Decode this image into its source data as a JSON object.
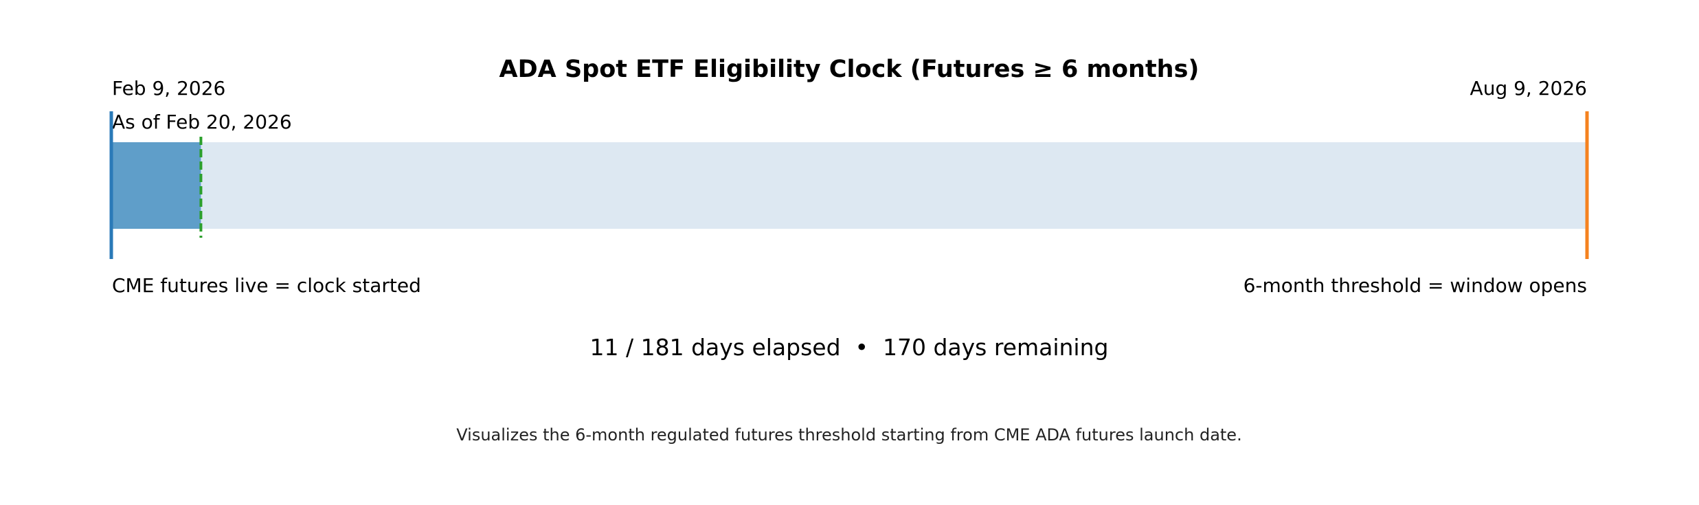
{
  "chart_data": {
    "type": "bar",
    "title": "ADA Spot ETF Eligibility Clock (Futures ≥ 6 months)",
    "start_label": "Feb 9, 2026",
    "end_label": "Aug 9, 2026",
    "asof_label": "As of Feb 20, 2026",
    "start_caption": "CME futures live = clock started",
    "end_caption": "6-month threshold = window opens",
    "summary": "11 / 181 days elapsed  •  170 days remaining",
    "footnote": "Visualizes the 6-month regulated futures threshold starting from CME ADA futures launch date.",
    "elapsed_days": 11,
    "total_days": 181,
    "remaining_days": 170,
    "colors": {
      "elapsed": "#5f9ec9",
      "remaining": "#dde8f2",
      "start_line": "#2a7ab8",
      "end_line": "#f5821f",
      "today_line": "#2ca02c"
    }
  }
}
